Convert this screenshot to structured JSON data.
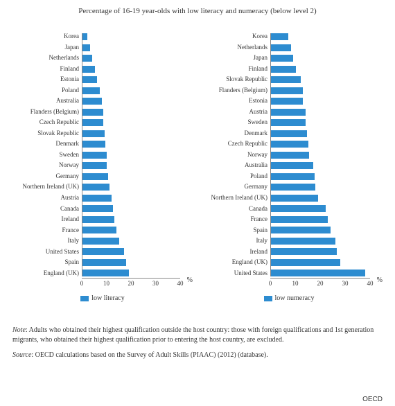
{
  "title": "Percentage of 16-19 year-olds with low literacy and numeracy (below level 2)",
  "note": "Note: Adults who obtained their highest qualification outside the host country: those with foreign qualifications and 1st generation migrants, who obtained their highest qualification prior to entering the host country, are excluded.",
  "source": "Source: OECD calculations based on the Survey of Adult Skills (PIAAC) (2012) (database).",
  "credit": "OECD",
  "percent_label": "%",
  "bar_color": "#2d8cd0",
  "text_color": "#333333",
  "axis_color": "#888888",
  "background_color": "#ffffff",
  "label_fontsize": 9,
  "tick_fontsize": 9,
  "note_fontsize": 10,
  "left_chart": {
    "type": "bar",
    "orientation": "horizontal",
    "legend_label": "low literacy",
    "xmax": 40,
    "xtick_step": 10,
    "xticks": [
      0,
      10,
      20,
      30,
      40
    ],
    "ylabel_width": 100,
    "categories": [
      "Korea",
      "Japan",
      "Netherlands",
      "Finland",
      "Estonia",
      "Poland",
      "Australia",
      "Flanders (Belgium)",
      "Czech Republic",
      "Slovak Republic",
      "Denmark",
      "Sweden",
      "Norway",
      "Germany",
      "Northern Ireland (UK)",
      "Austria",
      "Canada",
      "Ireland",
      "France",
      "Italy",
      "United States",
      "Spain",
      "England (UK)"
    ],
    "values": [
      2,
      3,
      4,
      5,
      6,
      7,
      8,
      8.5,
      8.5,
      9,
      9.5,
      10,
      10,
      10.5,
      11,
      12,
      12.5,
      13,
      14,
      15,
      17,
      18,
      19
    ]
  },
  "right_chart": {
    "type": "bar",
    "orientation": "horizontal",
    "legend_label": "low numeracy",
    "xmax": 40,
    "xtick_step": 10,
    "xticks": [
      0,
      10,
      20,
      30,
      40
    ],
    "ylabel_width": 108,
    "categories": [
      "Korea",
      "Netherlands",
      "Japan",
      "Finland",
      "Slovak Republic",
      "Flanders (Belgium)",
      "Estonia",
      "Austria",
      "Sweden",
      "Denmark",
      "Czech Republic",
      "Norway",
      "Australia",
      "Poland",
      "Germany",
      "Northern Ireland (UK)",
      "Canada",
      "France",
      "Spain",
      "Italy",
      "Ireland",
      "England (UK)",
      "United States"
    ],
    "values": [
      7,
      8,
      9,
      10,
      12,
      13,
      13,
      14,
      14,
      14.5,
      15,
      15.5,
      17,
      17.5,
      18,
      19,
      22,
      23,
      24,
      26,
      26.5,
      28,
      38
    ]
  }
}
